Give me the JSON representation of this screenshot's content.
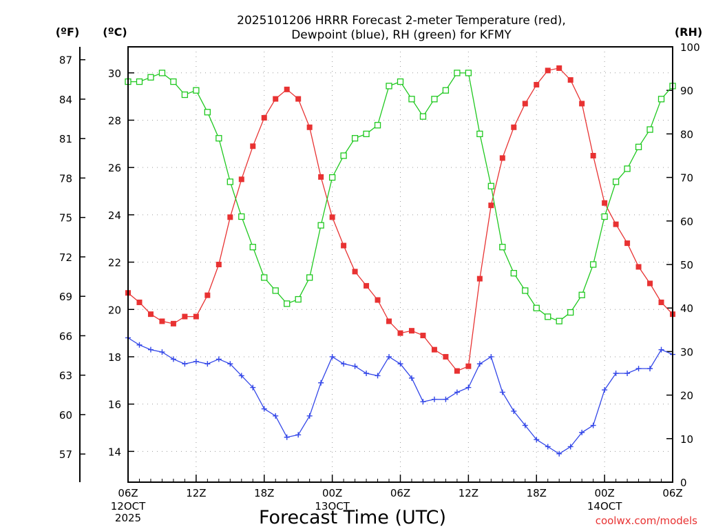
{
  "chart_data": {
    "type": "line",
    "title_line1": "2025101206 HRRR Forecast 2-meter Temperature (red),",
    "title_line2": "Dewpoint (blue), RH (green) for KFMY",
    "xlabel": "Forecast Time (UTC)",
    "unit_f": "(ºF)",
    "unit_c": "(ºC)",
    "unit_rh": "(RH)",
    "credit": "coolwx.com/models",
    "x_hours": [
      0,
      1,
      2,
      3,
      4,
      5,
      6,
      7,
      8,
      9,
      10,
      11,
      12,
      13,
      14,
      15,
      16,
      17,
      18,
      19,
      20,
      21,
      22,
      23,
      24,
      25,
      26,
      27,
      28,
      29,
      30,
      31,
      32,
      33,
      34,
      35,
      36,
      37,
      38,
      39,
      40,
      41,
      42,
      43,
      44,
      45,
      46,
      47,
      48
    ],
    "x_ticks": [
      {
        "hour": 0,
        "label": "06Z",
        "sub1": "12OCT",
        "sub2": "2025"
      },
      {
        "hour": 6,
        "label": "12Z",
        "sub1": "",
        "sub2": ""
      },
      {
        "hour": 12,
        "label": "18Z",
        "sub1": "",
        "sub2": ""
      },
      {
        "hour": 18,
        "label": "00Z",
        "sub1": "13OCT",
        "sub2": ""
      },
      {
        "hour": 24,
        "label": "06Z",
        "sub1": "",
        "sub2": ""
      },
      {
        "hour": 30,
        "label": "12Z",
        "sub1": "",
        "sub2": ""
      },
      {
        "hour": 36,
        "label": "18Z",
        "sub1": "",
        "sub2": ""
      },
      {
        "hour": 42,
        "label": "00Z",
        "sub1": "14OCT",
        "sub2": ""
      },
      {
        "hour": 48,
        "label": "06Z",
        "sub1": "",
        "sub2": ""
      }
    ],
    "c_range": [
      12.7,
      31.1
    ],
    "c_ticks": [
      "14",
      "16",
      "18",
      "20",
      "22",
      "24",
      "26",
      "28",
      "30"
    ],
    "f_ticks": [
      "57",
      "60",
      "63",
      "66",
      "69",
      "72",
      "75",
      "78",
      "81",
      "84",
      "87"
    ],
    "rh_range": [
      0,
      100
    ],
    "rh_ticks": [
      "0",
      "10",
      "20",
      "30",
      "40",
      "50",
      "60",
      "70",
      "80",
      "90",
      "100"
    ],
    "series": [
      {
        "name": "Temperature",
        "axis": "C",
        "color": "#e83232",
        "marker": "filled-square",
        "values": [
          20.7,
          20.3,
          19.8,
          19.5,
          19.4,
          19.7,
          19.7,
          20.6,
          21.9,
          23.9,
          25.5,
          26.9,
          28.1,
          28.9,
          29.3,
          28.9,
          27.7,
          25.6,
          23.9,
          22.7,
          21.6,
          21.0,
          20.4,
          19.5,
          19.0,
          19.1,
          18.9,
          18.3,
          18.0,
          17.4,
          17.6,
          21.3,
          24.4,
          26.4,
          27.7,
          28.7,
          29.5,
          30.1,
          30.2,
          29.7,
          28.7,
          26.5,
          24.5,
          23.6,
          22.8,
          21.8,
          21.1,
          20.3,
          19.8
        ]
      },
      {
        "name": "Dewpoint",
        "axis": "C",
        "color": "#3246e8",
        "marker": "plus",
        "values": [
          18.8,
          18.5,
          18.3,
          18.2,
          17.9,
          17.7,
          17.8,
          17.7,
          17.9,
          17.7,
          17.2,
          16.7,
          15.8,
          15.5,
          14.6,
          14.7,
          15.5,
          16.9,
          18.0,
          17.7,
          17.6,
          17.3,
          17.2,
          18.0,
          17.7,
          17.1,
          16.1,
          16.2,
          16.2,
          16.5,
          16.7,
          17.7,
          18.0,
          16.5,
          15.7,
          15.1,
          14.5,
          14.2,
          13.9,
          14.2,
          14.8,
          15.1,
          16.6,
          17.3,
          17.3,
          17.5,
          17.5,
          18.3,
          18.1
        ]
      },
      {
        "name": "RH",
        "axis": "RH",
        "color": "#1ec81e",
        "marker": "open-square",
        "values": [
          92,
          92,
          93,
          94,
          92,
          89,
          90,
          85,
          79,
          69,
          61,
          54,
          47,
          44,
          41,
          42,
          47,
          59,
          70,
          75,
          79,
          80,
          82,
          91,
          92,
          88,
          84,
          88,
          90,
          94,
          94,
          80,
          68,
          54,
          48,
          44,
          40,
          38,
          37,
          39,
          43,
          50,
          61,
          69,
          72,
          77,
          81,
          88,
          91
        ]
      }
    ]
  }
}
